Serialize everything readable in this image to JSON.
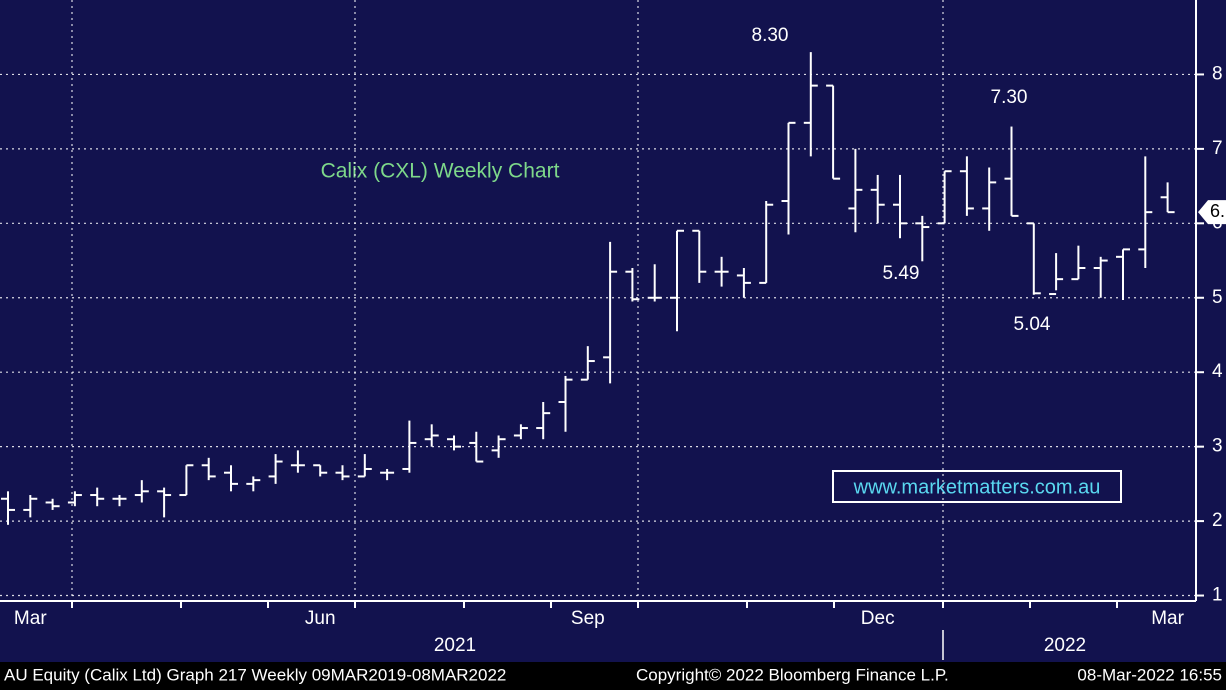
{
  "chart_data": {
    "type": "ohlc",
    "title": "Calix (CXL) Weekly Chart",
    "categories": [
      null,
      "Mar",
      null,
      null,
      null,
      null,
      null,
      null,
      null,
      null,
      null,
      null,
      null,
      null,
      "Jun",
      null,
      null,
      null,
      null,
      null,
      null,
      null,
      null,
      null,
      null,
      null,
      "Sep",
      null,
      null,
      null,
      null,
      null,
      null,
      null,
      null,
      null,
      null,
      null,
      null,
      "Dec",
      null,
      null,
      null,
      null,
      null,
      null,
      null,
      null,
      null,
      null,
      null,
      null,
      "Mar"
    ],
    "year_labels": [
      "2021",
      "2022"
    ],
    "open": [
      2.3,
      2.15,
      2.25,
      2.25,
      2.35,
      2.3,
      2.35,
      2.4,
      2.35,
      2.75,
      2.65,
      2.5,
      2.6,
      2.75,
      2.75,
      2.65,
      2.6,
      2.65,
      2.7,
      3.1,
      3.1,
      3.05,
      2.95,
      3.15,
      3.25,
      3.6,
      3.9,
      4.2,
      5.35,
      5.0,
      5.0,
      5.9,
      5.35,
      5.3,
      5.2,
      6.3,
      7.35,
      7.85,
      6.2,
      6.45,
      6.25,
      6.0,
      6.0,
      6.7,
      6.2,
      6.6,
      6.0,
      5.05,
      5.25,
      5.4,
      5.55,
      5.65,
      6.35
    ],
    "high": [
      2.4,
      2.35,
      2.3,
      2.4,
      2.45,
      2.35,
      2.55,
      2.45,
      2.75,
      2.85,
      2.75,
      2.6,
      2.9,
      2.95,
      2.75,
      2.75,
      2.9,
      2.7,
      3.35,
      3.3,
      3.15,
      3.2,
      3.15,
      3.3,
      3.6,
      3.95,
      4.35,
      5.75,
      5.4,
      5.45,
      5.9,
      5.9,
      5.55,
      5.4,
      6.3,
      7.35,
      8.3,
      7.85,
      7.0,
      6.65,
      6.65,
      6.1,
      6.7,
      6.9,
      6.75,
      7.3,
      6.0,
      5.6,
      5.7,
      5.55,
      5.65,
      6.9,
      6.55
    ],
    "low": [
      1.95,
      2.05,
      2.15,
      2.2,
      2.2,
      2.2,
      2.25,
      2.05,
      2.35,
      2.55,
      2.4,
      2.4,
      2.5,
      2.65,
      2.6,
      2.55,
      2.6,
      2.55,
      2.65,
      3.0,
      2.95,
      2.8,
      2.85,
      3.1,
      3.1,
      3.2,
      3.9,
      3.85,
      4.95,
      4.95,
      4.55,
      5.2,
      5.15,
      5.0,
      5.2,
      5.85,
      6.9,
      6.6,
      5.88,
      6.0,
      5.8,
      5.49,
      6.0,
      6.1,
      5.9,
      6.1,
      5.04,
      5.1,
      5.25,
      5.0,
      4.97,
      5.4,
      6.15
    ],
    "close": [
      2.15,
      2.3,
      2.2,
      2.35,
      2.3,
      2.3,
      2.4,
      2.35,
      2.75,
      2.6,
      2.5,
      2.55,
      2.8,
      2.75,
      2.65,
      2.6,
      2.7,
      2.65,
      3.05,
      3.15,
      3.0,
      2.8,
      3.1,
      3.25,
      3.45,
      3.9,
      4.15,
      5.35,
      4.98,
      5.0,
      5.9,
      5.35,
      5.35,
      5.2,
      6.25,
      7.35,
      7.85,
      6.6,
      6.45,
      6.25,
      6.0,
      5.95,
      6.7,
      6.2,
      6.55,
      6.1,
      5.06,
      5.25,
      5.4,
      5.5,
      5.65,
      6.15,
      6.15
    ],
    "color": "#ffffff",
    "ylim": [
      0.94,
      9
    ],
    "yticks": [
      1,
      2,
      3,
      4,
      5,
      6,
      7,
      8
    ],
    "grid": true,
    "annotations": [
      "8.30",
      "7.30",
      "5.49",
      "5.04"
    ],
    "last_price_label": "6.",
    "watermark": "www.marketmatters.com.au",
    "footer": [
      "AU Equity (Calix Ltd) Graph 217  Weekly 09MAR2019-08MAR2022",
      "Copyright© 2022 Bloomberg Finance L.P.",
      "08-Mar-2022 16:55"
    ]
  }
}
